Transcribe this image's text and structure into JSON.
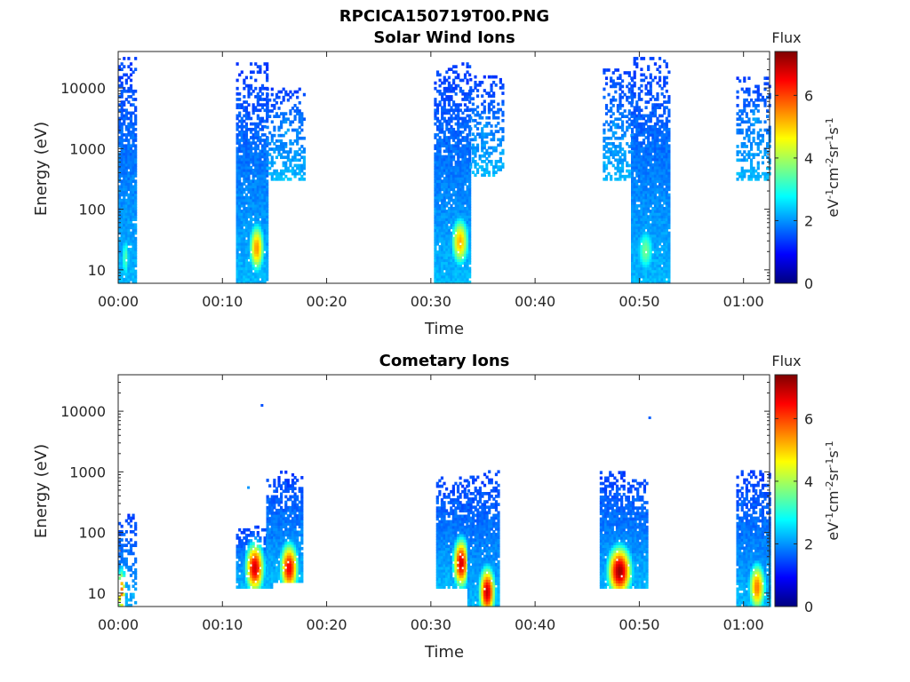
{
  "figure": {
    "title": "RPCICA150719T00.PNG"
  },
  "colormap": [
    "#00007f",
    "#0000ff",
    "#007fff",
    "#00ffff",
    "#7fff7f",
    "#ffff00",
    "#ff7f00",
    "#ff0000",
    "#7f0000"
  ],
  "chart_data": [
    {
      "type": "heatmap",
      "title": "Solar Wind Ions",
      "xlabel": "Time",
      "ylabel": "Energy (eV)",
      "xlim": [
        0,
        62.5
      ],
      "ylim": [
        6,
        40000
      ],
      "y_scale": "log",
      "x_ticks": [
        0,
        10,
        20,
        30,
        40,
        50,
        60
      ],
      "x_tick_labels": [
        "00:00",
        "00:10",
        "00:20",
        "00:30",
        "00:40",
        "00:50",
        "01:00"
      ],
      "y_ticks": [
        10,
        100,
        1000,
        10000
      ],
      "y_tick_labels": [
        "10",
        "100",
        "1000",
        "10000"
      ],
      "colorbar": {
        "title": "Flux",
        "label": "eV-1cm-2sr-1s-1",
        "range": [
          0,
          7.4
        ],
        "ticks": [
          0,
          2,
          4,
          6
        ],
        "tick_labels": [
          "0",
          "2",
          "4",
          "6"
        ]
      },
      "bursts": [
        {
          "t_start": 0.0,
          "t_end": 1.7,
          "e_min": 6,
          "e_max": 30000,
          "peak_flux": 3.4,
          "peak_time": 0.6,
          "peak_energy": 15,
          "sparse_high": false
        },
        {
          "t_start": 11.3,
          "t_end": 14.2,
          "e_min": 6,
          "e_max": 25000,
          "peak_flux": 5.4,
          "peak_time": 13.2,
          "peak_energy": 22,
          "sparse_high": false
        },
        {
          "t_start": 14.2,
          "t_end": 17.8,
          "e_min": 300,
          "e_max": 10000,
          "peak_flux": 2.2,
          "peak_time": 16.0,
          "peak_energy": 2000,
          "sparse_high": true
        },
        {
          "t_start": 30.3,
          "t_end": 33.7,
          "e_min": 6,
          "e_max": 25000,
          "peak_flux": 5.2,
          "peak_time": 32.7,
          "peak_energy": 28,
          "sparse_high": false
        },
        {
          "t_start": 33.7,
          "t_end": 36.8,
          "e_min": 350,
          "e_max": 15000,
          "peak_flux": 2.2,
          "peak_time": 35.0,
          "peak_energy": 2000,
          "sparse_high": true
        },
        {
          "t_start": 46.5,
          "t_end": 49.2,
          "e_min": 300,
          "e_max": 20000,
          "peak_flux": 2.2,
          "peak_time": 47.5,
          "peak_energy": 2000,
          "sparse_high": true
        },
        {
          "t_start": 49.2,
          "t_end": 52.8,
          "e_min": 6,
          "e_max": 30000,
          "peak_flux": 3.6,
          "peak_time": 50.5,
          "peak_energy": 20,
          "sparse_high": false
        },
        {
          "t_start": 59.3,
          "t_end": 62.5,
          "e_min": 300,
          "e_max": 15000,
          "peak_flux": 2.2,
          "peak_time": 61.0,
          "peak_energy": 3000,
          "sparse_high": true
        }
      ],
      "isolated_points": []
    },
    {
      "type": "heatmap",
      "title": "Cometary Ions",
      "xlabel": "Time",
      "ylabel": "Energy (eV)",
      "xlim": [
        0,
        62.5
      ],
      "ylim": [
        6,
        40000
      ],
      "y_scale": "log",
      "x_ticks": [
        0,
        10,
        20,
        30,
        40,
        50,
        60
      ],
      "x_tick_labels": [
        "00:00",
        "00:10",
        "00:20",
        "00:30",
        "00:40",
        "00:50",
        "01:00"
      ],
      "y_ticks": [
        10,
        100,
        1000,
        10000
      ],
      "y_tick_labels": [
        "10",
        "100",
        "1000",
        "10000"
      ],
      "colorbar": {
        "title": "Flux",
        "label": "eV-1cm-2sr-1s-1",
        "range": [
          0,
          7.4
        ],
        "ticks": [
          0,
          2,
          4,
          6
        ],
        "tick_labels": [
          "0",
          "2",
          "4",
          "6"
        ]
      },
      "bursts": [
        {
          "t_start": 0.0,
          "t_end": 1.7,
          "e_min": 6,
          "e_max": 200,
          "peak_flux": 5.6,
          "peak_time": 0.2,
          "peak_energy": 10,
          "sparse_high": true
        },
        {
          "t_start": 11.3,
          "t_end": 14.8,
          "e_min": 12,
          "e_max": 120,
          "peak_flux": 6.8,
          "peak_time": 13.0,
          "peak_energy": 25,
          "sparse_high": false
        },
        {
          "t_start": 14.2,
          "t_end": 17.6,
          "e_min": 15,
          "e_max": 1000,
          "peak_flux": 6.6,
          "peak_time": 16.3,
          "peak_energy": 25,
          "sparse_high": false
        },
        {
          "t_start": 30.5,
          "t_end": 33.5,
          "e_min": 12,
          "e_max": 800,
          "peak_flux": 6.8,
          "peak_time": 32.8,
          "peak_energy": 30,
          "sparse_high": false
        },
        {
          "t_start": 33.5,
          "t_end": 36.5,
          "e_min": 6,
          "e_max": 1000,
          "peak_flux": 6.9,
          "peak_time": 35.3,
          "peak_energy": 10,
          "sparse_high": false
        },
        {
          "t_start": 46.2,
          "t_end": 50.7,
          "e_min": 12,
          "e_max": 1000,
          "peak_flux": 7.2,
          "peak_time": 48.0,
          "peak_energy": 22,
          "sparse_high": false
        },
        {
          "t_start": 59.3,
          "t_end": 62.5,
          "e_min": 6,
          "e_max": 1000,
          "peak_flux": 5.6,
          "peak_time": 61.2,
          "peak_energy": 12,
          "sparse_high": false
        }
      ],
      "isolated_points": [
        {
          "t": 12.5,
          "e": 550,
          "flux": 2.0
        },
        {
          "t": 13.8,
          "e": 12500,
          "flux": 1.5
        },
        {
          "t": 51.0,
          "e": 7800,
          "flux": 1.6
        }
      ]
    }
  ]
}
